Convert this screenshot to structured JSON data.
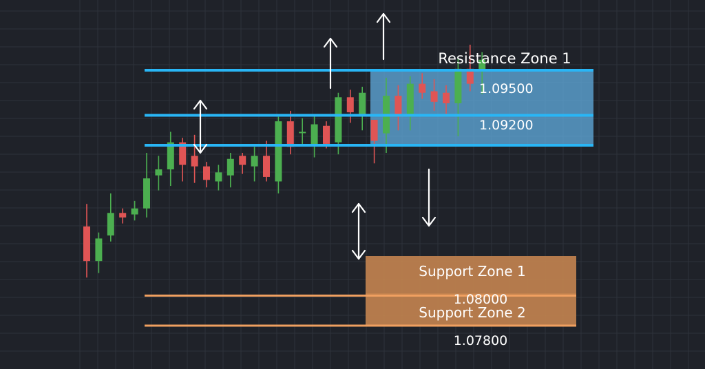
{
  "colors": {
    "background": "#1f2229",
    "grid": "#2e323b",
    "bullish": "#4caf50",
    "bearish": "#e05555",
    "resistance_line": "#29b6f6",
    "resistance_fill": "#5fa8d8",
    "support_line": "#f0a060",
    "support_fill": "#c48450",
    "arrow": "#ffffff"
  },
  "chart_data": {
    "type": "candlestick",
    "title": "",
    "xlabel": "",
    "ylabel": "",
    "ylim": [
      1.0765,
      1.1005
    ],
    "grid": true,
    "candles": [
      {
        "o": 1.0846,
        "h": 1.0861,
        "l": 1.0812,
        "c": 1.0823
      },
      {
        "o": 1.0823,
        "h": 1.0842,
        "l": 1.0815,
        "c": 1.0838
      },
      {
        "o": 1.084,
        "h": 1.0868,
        "l": 1.0836,
        "c": 1.0855
      },
      {
        "o": 1.0855,
        "h": 1.0858,
        "l": 1.0848,
        "c": 1.0852
      },
      {
        "o": 1.0854,
        "h": 1.0863,
        "l": 1.085,
        "c": 1.0858
      },
      {
        "o": 1.0858,
        "h": 1.0895,
        "l": 1.0852,
        "c": 1.0878
      },
      {
        "o": 1.088,
        "h": 1.0893,
        "l": 1.087,
        "c": 1.0884
      },
      {
        "o": 1.0884,
        "h": 1.0909,
        "l": 1.0873,
        "c": 1.0902
      },
      {
        "o": 1.0902,
        "h": 1.0905,
        "l": 1.0876,
        "c": 1.0887
      },
      {
        "o": 1.0893,
        "h": 1.0907,
        "l": 1.0875,
        "c": 1.0886
      },
      {
        "o": 1.0886,
        "h": 1.0889,
        "l": 1.0872,
        "c": 1.0877
      },
      {
        "o": 1.0876,
        "h": 1.0887,
        "l": 1.087,
        "c": 1.0882
      },
      {
        "o": 1.088,
        "h": 1.0895,
        "l": 1.0872,
        "c": 1.0891
      },
      {
        "o": 1.0893,
        "h": 1.0895,
        "l": 1.0881,
        "c": 1.0887
      },
      {
        "o": 1.0886,
        "h": 1.0899,
        "l": 1.0876,
        "c": 1.0893
      },
      {
        "o": 1.0893,
        "h": 1.0903,
        "l": 1.0876,
        "c": 1.0879
      },
      {
        "o": 1.0876,
        "h": 1.0919,
        "l": 1.0868,
        "c": 1.0916
      },
      {
        "o": 1.0916,
        "h": 1.0923,
        "l": 1.0894,
        "c": 1.0899
      },
      {
        "o": 1.0909,
        "h": 1.0918,
        "l": 1.0901,
        "c": 1.0909
      },
      {
        "o": 1.09,
        "h": 1.092,
        "l": 1.0892,
        "c": 1.0914
      },
      {
        "o": 1.0913,
        "h": 1.0916,
        "l": 1.0898,
        "c": 1.0901
      },
      {
        "o": 1.0902,
        "h": 1.0935,
        "l": 1.0894,
        "c": 1.0932
      },
      {
        "o": 1.0932,
        "h": 1.0937,
        "l": 1.0915,
        "c": 1.0922
      },
      {
        "o": 1.092,
        "h": 1.0939,
        "l": 1.091,
        "c": 1.0935
      },
      {
        "o": 1.0917,
        "h": 1.0917,
        "l": 1.0888,
        "c": 1.0903
      },
      {
        "o": 1.0908,
        "h": 1.0945,
        "l": 1.0895,
        "c": 1.0933
      },
      {
        "o": 1.0933,
        "h": 1.094,
        "l": 1.091,
        "c": 1.0919
      },
      {
        "o": 1.0919,
        "h": 1.0946,
        "l": 1.091,
        "c": 1.0941
      },
      {
        "o": 1.0941,
        "h": 1.0948,
        "l": 1.0931,
        "c": 1.0935
      },
      {
        "o": 1.0936,
        "h": 1.0944,
        "l": 1.0923,
        "c": 1.0929
      },
      {
        "o": 1.0935,
        "h": 1.094,
        "l": 1.092,
        "c": 1.0928
      },
      {
        "o": 1.0928,
        "h": 1.0958,
        "l": 1.0906,
        "c": 1.0951
      },
      {
        "o": 1.0951,
        "h": 1.0967,
        "l": 1.0936,
        "c": 1.0941
      },
      {
        "o": 1.0949,
        "h": 1.0962,
        "l": 1.0934,
        "c": 1.0957
      }
    ],
    "zones": {
      "resistance": {
        "label": "Resistance Zone 1",
        "levels": [
          {
            "value": 1.095,
            "label": "1.09500"
          },
          {
            "value": 1.092,
            "label": "1.09200"
          }
        ]
      },
      "support": [
        {
          "label": "Support Zone 1",
          "value": 1.08,
          "price_label": "1.08000"
        },
        {
          "label": "Support Zone 2",
          "value": 1.078,
          "price_label": "1.07800"
        }
      ]
    },
    "arrows": [
      {
        "direction": "up"
      },
      {
        "direction": "up"
      },
      {
        "direction": "both"
      },
      {
        "direction": "both"
      },
      {
        "direction": "down"
      }
    ]
  }
}
